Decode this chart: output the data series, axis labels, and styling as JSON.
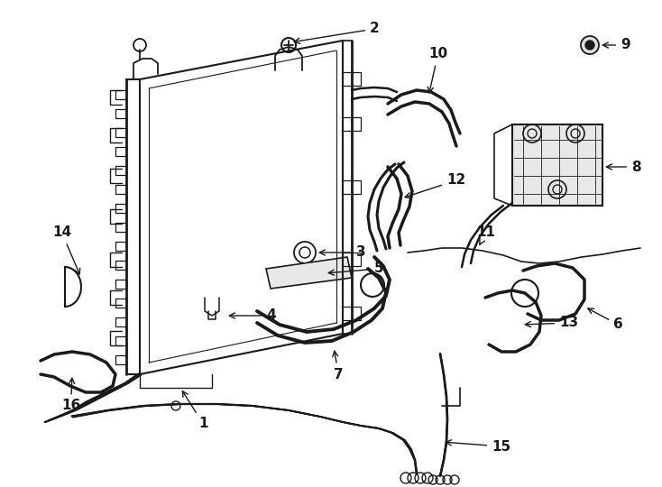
{
  "background": "#ffffff",
  "line_color": "#1a1a1a",
  "lw": 1.3,
  "figsize": [
    7.34,
    5.4
  ],
  "dpi": 100
}
